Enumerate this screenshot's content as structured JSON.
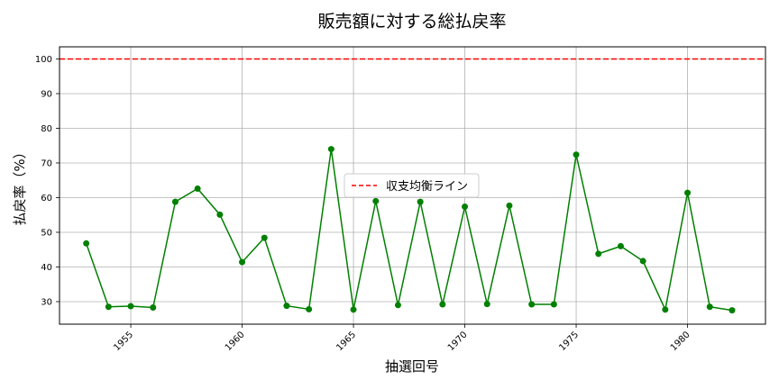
{
  "chart_data": {
    "type": "line",
    "title": "販売額に対する総払戻率",
    "xlabel": "抽選回号",
    "ylabel": "払戻率（%）",
    "xlim": [
      1951.8,
      1983.5
    ],
    "ylim": [
      23.5,
      103.5
    ],
    "xticks": [
      1955,
      1960,
      1965,
      1970,
      1975,
      1980
    ],
    "yticks": [
      30,
      40,
      50,
      60,
      70,
      80,
      90,
      100
    ],
    "grid": true,
    "legend_position": "center-right",
    "series": [
      {
        "color": "#008000",
        "marker": "circle",
        "x": [
          1953,
          1954,
          1955,
          1956,
          1957,
          1958,
          1959,
          1960,
          1961,
          1962,
          1963,
          1964,
          1965,
          1966,
          1967,
          1968,
          1969,
          1970,
          1971,
          1972,
          1973,
          1974,
          1975,
          1976,
          1977,
          1978,
          1979,
          1980,
          1981,
          1982
        ],
        "y": [
          46.8,
          28.5,
          28.7,
          28.3,
          58.8,
          62.6,
          55.1,
          41.4,
          48.4,
          28.8,
          27.8,
          74.0,
          27.7,
          59.0,
          29.0,
          58.8,
          29.2,
          57.4,
          29.3,
          57.7,
          29.2,
          29.2,
          72.4,
          43.8,
          46.0,
          41.7,
          27.7,
          61.4,
          28.5,
          27.5
        ]
      }
    ],
    "reference_line": {
      "label": "収支均衡ライン",
      "y": 100,
      "color": "#ff0000",
      "style": "dashed"
    }
  }
}
